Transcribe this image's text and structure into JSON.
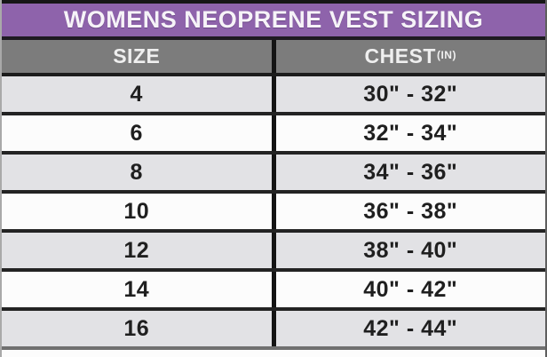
{
  "title": "WOMENS NEOPRENE VEST SIZING",
  "header": {
    "size_label": "SIZE",
    "chest_label": "CHEST",
    "chest_unit_sup": "(IN)"
  },
  "chart_data": {
    "type": "table",
    "title": "WOMENS NEOPRENE VEST SIZING",
    "columns": [
      "SIZE",
      "CHEST(IN)"
    ],
    "rows": [
      [
        "4",
        "30\" - 32\""
      ],
      [
        "6",
        "32\" - 34\""
      ],
      [
        "8",
        "34\" - 36\""
      ],
      [
        "10",
        "36\" - 38\""
      ],
      [
        "12",
        "38\" - 40\""
      ],
      [
        "14",
        "40\" - 42\""
      ],
      [
        "16",
        "42\" - 44\""
      ]
    ]
  },
  "colors": {
    "title_bg": "#8e63ab",
    "title_text": "#f6f3f8",
    "header_bg": "#7c7c7c",
    "header_text": "#efefef",
    "row_bg": "#fcfcfc",
    "row_alt_bg": "#e2e2e5",
    "border_dark": "#1c1c1c",
    "cell_text": "#1f1f1f"
  }
}
